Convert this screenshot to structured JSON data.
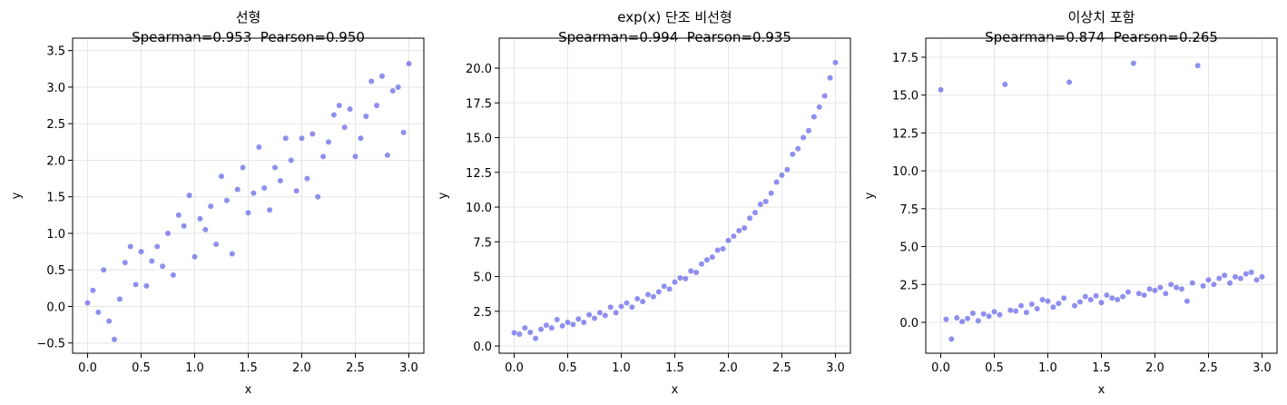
{
  "chart_data": [
    {
      "type": "scatter",
      "title": "선형",
      "subtitle": "Spearman=0.953  Pearson=0.950",
      "xlabel": "x",
      "ylabel": "y",
      "color": "#6a6aea",
      "grid": true,
      "xlim": [
        -0.14,
        3.14
      ],
      "ylim": [
        -0.64,
        3.67
      ],
      "xticks": [
        {
          "value": 0,
          "label": "0.0"
        },
        0.5,
        {
          "value": 1,
          "label": "1.0"
        },
        1.5,
        {
          "value": 2,
          "label": "2.0"
        },
        2.5,
        {
          "value": 3,
          "label": "3.0"
        }
      ],
      "yticks": [
        {
          "value": -0.5,
          "label": "−0.5"
        },
        {
          "value": 0,
          "label": "0.0"
        },
        0.5,
        {
          "value": 1,
          "label": "1.0"
        },
        1.5,
        {
          "value": 2,
          "label": "2.0"
        },
        2.5,
        {
          "value": 3,
          "label": "3.0"
        },
        3.5
      ],
      "x": [
        0,
        0.05,
        0.1,
        0.15,
        0.2,
        0.25,
        0.3,
        0.35,
        0.4,
        0.45,
        0.5,
        0.55,
        0.6,
        0.65,
        0.7,
        0.75,
        0.8,
        0.85,
        0.9,
        0.95,
        1,
        1.05,
        1.1,
        1.15,
        1.2,
        1.25,
        1.3,
        1.35,
        1.4,
        1.45,
        1.5,
        1.55,
        1.6,
        1.65,
        1.7,
        1.75,
        1.8,
        1.85,
        1.9,
        1.95,
        2,
        2.05,
        2.1,
        2.15,
        2.2,
        2.25,
        2.3,
        2.35,
        2.4,
        2.45,
        2.5,
        2.55,
        2.6,
        2.65,
        2.7,
        2.75,
        2.8,
        2.85,
        2.9,
        2.95,
        3
      ],
      "values": [
        0.05,
        0.22,
        -0.08,
        0.5,
        -0.2,
        -0.45,
        0.1,
        0.6,
        0.82,
        0.3,
        0.75,
        0.28,
        0.62,
        0.82,
        0.55,
        1.0,
        0.43,
        1.25,
        1.1,
        1.52,
        0.68,
        1.2,
        1.05,
        1.37,
        0.85,
        1.78,
        1.45,
        0.72,
        1.6,
        1.9,
        1.28,
        1.55,
        2.18,
        1.62,
        1.32,
        1.9,
        1.72,
        2.3,
        2.0,
        1.58,
        2.3,
        1.75,
        2.36,
        1.5,
        2.05,
        2.25,
        2.62,
        2.75,
        2.45,
        2.7,
        2.05,
        2.3,
        2.6,
        3.08,
        2.75,
        3.15,
        2.07,
        2.95,
        3.0,
        2.38,
        3.32
      ]
    },
    {
      "type": "scatter",
      "title": "exp(x) 단조 비선형",
      "subtitle": "Spearman=0.994  Pearson=0.935",
      "xlabel": "x",
      "ylabel": "y",
      "color": "#6a6aea",
      "grid": true,
      "xlim": [
        -0.14,
        3.14
      ],
      "ylim": [
        -0.52,
        22.16
      ],
      "xticks": [
        {
          "value": 0,
          "label": "0.0"
        },
        0.5,
        {
          "value": 1,
          "label": "1.0"
        },
        1.5,
        {
          "value": 2,
          "label": "2.0"
        },
        2.5,
        {
          "value": 3,
          "label": "3.0"
        }
      ],
      "yticks": [
        {
          "value": 0,
          "label": "0.0"
        },
        2.5,
        {
          "value": 5,
          "label": "5.0"
        },
        7.5,
        {
          "value": 10,
          "label": "10.0"
        },
        12.5,
        {
          "value": 15,
          "label": "15.0"
        },
        17.5,
        {
          "value": 20,
          "label": "20.0"
        }
      ],
      "x": [
        0,
        0.05,
        0.1,
        0.15,
        0.2,
        0.25,
        0.3,
        0.35,
        0.4,
        0.45,
        0.5,
        0.55,
        0.6,
        0.65,
        0.7,
        0.75,
        0.8,
        0.85,
        0.9,
        0.95,
        1,
        1.05,
        1.1,
        1.15,
        1.2,
        1.25,
        1.3,
        1.35,
        1.4,
        1.45,
        1.5,
        1.55,
        1.6,
        1.65,
        1.7,
        1.75,
        1.8,
        1.85,
        1.9,
        1.95,
        2,
        2.05,
        2.1,
        2.15,
        2.2,
        2.25,
        2.3,
        2.35,
        2.4,
        2.45,
        2.5,
        2.55,
        2.6,
        2.65,
        2.7,
        2.75,
        2.8,
        2.85,
        2.9,
        2.95,
        3
      ],
      "values": [
        0.95,
        0.85,
        1.3,
        0.98,
        0.55,
        1.2,
        1.5,
        1.3,
        1.9,
        1.45,
        1.7,
        1.55,
        1.95,
        1.7,
        2.25,
        2.0,
        2.4,
        2.2,
        2.8,
        2.4,
        2.85,
        3.1,
        2.8,
        3.4,
        3.2,
        3.7,
        3.55,
        3.9,
        4.3,
        4.1,
        4.6,
        4.9,
        4.85,
        5.4,
        5.3,
        5.9,
        6.2,
        6.4,
        6.9,
        7.0,
        7.6,
        7.9,
        8.3,
        8.5,
        9.2,
        9.6,
        10.2,
        10.4,
        11.0,
        11.8,
        12.3,
        12.7,
        13.8,
        14.2,
        15.0,
        15.5,
        16.5,
        17.2,
        18.0,
        19.3,
        20.4
      ]
    },
    {
      "type": "scatter",
      "title": "이상치 포함",
      "subtitle": "Spearman=0.874  Pearson=0.265",
      "xlabel": "x",
      "ylabel": "y",
      "color": "#6a6aea",
      "grid": true,
      "xlim": [
        -0.14,
        3.14
      ],
      "ylim": [
        -2.04,
        18.76
      ],
      "xticks": [
        {
          "value": 0,
          "label": "0.0"
        },
        0.5,
        {
          "value": 1,
          "label": "1.0"
        },
        1.5,
        {
          "value": 2,
          "label": "2.0"
        },
        2.5,
        {
          "value": 3,
          "label": "3.0"
        }
      ],
      "yticks": [
        {
          "value": 0,
          "label": "0.0"
        },
        2.5,
        {
          "value": 5,
          "label": "5.0"
        },
        7.5,
        {
          "value": 10,
          "label": "10.0"
        },
        12.5,
        {
          "value": 15,
          "label": "15.0"
        },
        17.5
      ],
      "x": [
        0,
        0.05,
        0.1,
        0.15,
        0.2,
        0.25,
        0.3,
        0.35,
        0.4,
        0.45,
        0.5,
        0.55,
        0.6,
        0.65,
        0.7,
        0.75,
        0.8,
        0.85,
        0.9,
        0.95,
        1,
        1.05,
        1.1,
        1.15,
        1.2,
        1.25,
        1.3,
        1.35,
        1.4,
        1.45,
        1.5,
        1.55,
        1.6,
        1.65,
        1.7,
        1.75,
        1.8,
        1.85,
        1.9,
        1.95,
        2,
        2.05,
        2.1,
        2.15,
        2.2,
        2.25,
        2.3,
        2.35,
        2.4,
        2.45,
        2.5,
        2.55,
        2.6,
        2.65,
        2.7,
        2.75,
        2.8,
        2.85,
        2.9,
        2.95,
        3
      ],
      "values": [
        15.35,
        0.2,
        -1.1,
        0.3,
        0.05,
        0.25,
        0.6,
        0.1,
        0.55,
        0.4,
        0.7,
        0.5,
        15.7,
        0.8,
        0.75,
        1.1,
        0.65,
        1.2,
        0.9,
        1.5,
        1.4,
        1.0,
        1.25,
        1.6,
        15.85,
        1.1,
        1.35,
        1.7,
        1.5,
        1.75,
        1.3,
        1.8,
        1.6,
        1.5,
        1.7,
        2.0,
        17.1,
        1.9,
        1.8,
        2.2,
        2.1,
        2.3,
        1.9,
        2.5,
        2.3,
        2.2,
        1.4,
        2.6,
        16.95,
        2.4,
        2.8,
        2.5,
        2.9,
        3.1,
        2.6,
        3.0,
        2.9,
        3.2,
        3.3,
        2.8,
        3.0
      ]
    }
  ]
}
